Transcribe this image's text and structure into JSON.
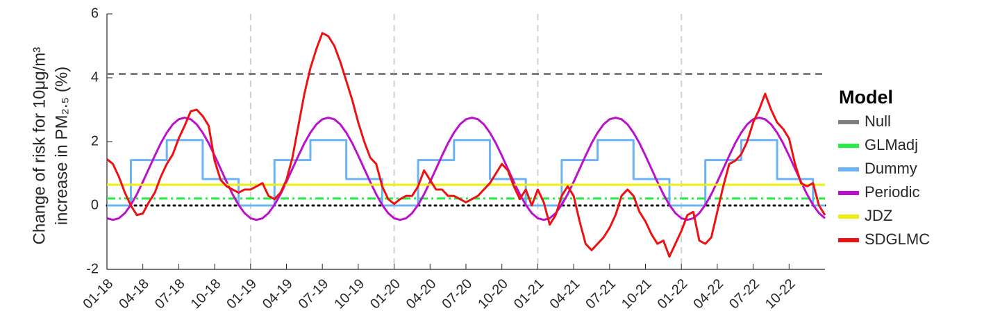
{
  "chart_data": {
    "type": "line",
    "ylabel": [
      "Change of risk for 10μg/m³",
      "increase in PM₂.₅ (%)"
    ],
    "legend_title": "Model",
    "legend": "right",
    "xlim": [
      0,
      60
    ],
    "xticks": [
      {
        "value": 0,
        "label": "01-18"
      },
      {
        "value": 3,
        "label": "04-18"
      },
      {
        "value": 6,
        "label": "07-18"
      },
      {
        "value": 9,
        "label": "10-18"
      },
      {
        "value": 12,
        "label": "01-19"
      },
      {
        "value": 15,
        "label": "04-19"
      },
      {
        "value": 18,
        "label": "07-19"
      },
      {
        "value": 21,
        "label": "10-19"
      },
      {
        "value": 24,
        "label": "01-20"
      },
      {
        "value": 27,
        "label": "04-20"
      },
      {
        "value": 30,
        "label": "07-20"
      },
      {
        "value": 33,
        "label": "10-20"
      },
      {
        "value": 36,
        "label": "01-21"
      },
      {
        "value": 39,
        "label": "04-21"
      },
      {
        "value": 42,
        "label": "07-21"
      },
      {
        "value": 45,
        "label": "10-21"
      },
      {
        "value": 48,
        "label": "01-22"
      },
      {
        "value": 51,
        "label": "04-22"
      },
      {
        "value": 54,
        "label": "07-22"
      },
      {
        "value": 57,
        "label": "10-22"
      }
    ],
    "year_lines": [
      12,
      24,
      36,
      48
    ],
    "ylim": [
      -2,
      6
    ],
    "yticks": [
      -2,
      0,
      2,
      4,
      6
    ],
    "reference_line": 0,
    "x": [
      0,
      0.5,
      1,
      1.5,
      2,
      2.5,
      3,
      3.5,
      4,
      4.5,
      5,
      5.5,
      6,
      6.5,
      7,
      7.5,
      8,
      8.5,
      9,
      9.5,
      10,
      10.5,
      11,
      11.5,
      12,
      12.5,
      13,
      13.5,
      14,
      14.5,
      15,
      15.5,
      16,
      16.5,
      17,
      17.5,
      18,
      18.5,
      19,
      19.5,
      20,
      20.5,
      21,
      21.5,
      22,
      22.5,
      23,
      23.5,
      24,
      24.5,
      25,
      25.5,
      26,
      26.5,
      27,
      27.5,
      28,
      28.5,
      29,
      29.5,
      30,
      30.5,
      31,
      31.5,
      32,
      32.5,
      33,
      33.5,
      34,
      34.5,
      35,
      35.5,
      36,
      36.5,
      37,
      37.5,
      38,
      38.5,
      39,
      39.5,
      40,
      40.5,
      41,
      41.5,
      42,
      42.5,
      43,
      43.5,
      44,
      44.5,
      45,
      45.5,
      46,
      46.5,
      47,
      47.5,
      48,
      48.5,
      49,
      49.5,
      50,
      50.5,
      51,
      51.5,
      52,
      52.5,
      53,
      53.5,
      54,
      54.5,
      55,
      55.5,
      56,
      56.5,
      57,
      57.5,
      58,
      58.5,
      59,
      59.5,
      60
    ],
    "series": [
      {
        "name": "Null",
        "color": "#808080",
        "dash": "dashed",
        "x": [
          0,
          60
        ],
        "values": [
          4.12,
          4.12
        ]
      },
      {
        "name": "GLMadj",
        "color": "#22ee44",
        "dash": "dashdot",
        "x": [
          0,
          60
        ],
        "values": [
          0.22,
          0.22
        ]
      },
      {
        "name": "Dummy",
        "color": "#6ab4f5",
        "dash": "solid",
        "x": [
          0,
          2,
          2,
          5,
          5,
          8,
          8,
          11,
          11,
          14,
          14,
          17,
          17,
          20,
          20,
          23,
          23,
          26,
          26,
          29,
          29,
          32,
          32,
          35,
          35,
          38,
          38,
          41,
          41,
          44,
          44,
          47,
          47,
          50,
          50,
          53,
          53,
          56,
          56,
          59,
          59,
          60
        ],
        "values": [
          0,
          0,
          1.42,
          1.42,
          2.05,
          2.05,
          0.83,
          0.83,
          0,
          0,
          1.42,
          1.42,
          2.05,
          2.05,
          0.83,
          0.83,
          0,
          0,
          1.42,
          1.42,
          2.05,
          2.05,
          0.83,
          0.83,
          0,
          0,
          1.42,
          1.42,
          2.05,
          2.05,
          0.83,
          0.83,
          0,
          0,
          1.42,
          1.42,
          2.05,
          2.05,
          0.83,
          0.83,
          0,
          0
        ]
      },
      {
        "name": "Periodic",
        "color": "#bb11cc",
        "dash": "solid",
        "values": [
          -0.4,
          -0.45,
          -0.4,
          -0.24,
          0.02,
          0.35,
          0.74,
          1.15,
          1.56,
          1.95,
          2.28,
          2.54,
          2.7,
          2.75,
          2.7,
          2.54,
          2.28,
          1.95,
          1.56,
          1.15,
          0.74,
          0.35,
          0.02,
          -0.24,
          -0.4,
          -0.45,
          -0.4,
          -0.24,
          0.02,
          0.35,
          0.74,
          1.15,
          1.56,
          1.95,
          2.28,
          2.54,
          2.7,
          2.75,
          2.7,
          2.54,
          2.28,
          1.95,
          1.56,
          1.15,
          0.74,
          0.35,
          0.02,
          -0.24,
          -0.4,
          -0.45,
          -0.4,
          -0.24,
          0.02,
          0.35,
          0.74,
          1.15,
          1.56,
          1.95,
          2.28,
          2.54,
          2.7,
          2.75,
          2.7,
          2.54,
          2.28,
          1.95,
          1.56,
          1.15,
          0.74,
          0.35,
          0.02,
          -0.24,
          -0.4,
          -0.45,
          -0.4,
          -0.24,
          0.02,
          0.35,
          0.74,
          1.15,
          1.56,
          1.95,
          2.28,
          2.54,
          2.7,
          2.75,
          2.7,
          2.54,
          2.28,
          1.95,
          1.56,
          1.15,
          0.74,
          0.35,
          0.02,
          -0.24,
          -0.4,
          -0.45,
          -0.4,
          -0.24,
          0.02,
          0.35,
          0.74,
          1.15,
          1.56,
          1.95,
          2.28,
          2.54,
          2.7,
          2.75,
          2.7,
          2.54,
          2.28,
          1.95,
          1.56,
          1.15,
          0.74,
          0.35,
          0.02,
          -0.24,
          -0.4
        ]
      },
      {
        "name": "JDZ",
        "color": "#eeee11",
        "dash": "solid",
        "x": [
          0,
          60
        ],
        "values": [
          0.65,
          0.65
        ]
      },
      {
        "name": "SDGLMC",
        "color": "#ee1111",
        "dash": "solid",
        "values": [
          1.45,
          1.3,
          0.9,
          0.4,
          0.0,
          -0.3,
          -0.25,
          0.1,
          0.4,
          0.9,
          1.3,
          1.6,
          2.1,
          2.5,
          2.95,
          3.0,
          2.8,
          2.5,
          1.4,
          0.8,
          0.6,
          0.5,
          0.4,
          0.5,
          0.5,
          0.6,
          0.7,
          0.3,
          0.2,
          0.4,
          0.8,
          1.5,
          2.5,
          3.5,
          4.3,
          4.9,
          5.4,
          5.3,
          5.0,
          4.5,
          3.9,
          3.3,
          2.6,
          2.0,
          1.5,
          1.3,
          0.6,
          0.2,
          0.05,
          0.2,
          0.3,
          0.3,
          0.6,
          1.1,
          0.8,
          0.5,
          0.5,
          0.3,
          0.3,
          0.2,
          0.1,
          0.2,
          0.3,
          0.5,
          0.7,
          1.0,
          1.3,
          1.1,
          0.6,
          0.2,
          0.5,
          0.0,
          0.5,
          0.1,
          -0.6,
          -0.3,
          0.3,
          0.6,
          0.3,
          -0.5,
          -1.2,
          -1.4,
          -1.2,
          -1.0,
          -0.7,
          -0.3,
          0.3,
          0.5,
          0.3,
          -0.2,
          -0.5,
          -0.9,
          -1.2,
          -1.1,
          -1.6,
          -1.2,
          -0.8,
          -0.3,
          -0.2,
          -1.1,
          -1.2,
          -1.0,
          -0.2,
          0.6,
          1.3,
          1.4,
          1.6,
          2.0,
          2.6,
          3.0,
          3.5,
          3.0,
          2.6,
          2.4,
          2.1,
          1.3,
          0.7,
          0.6,
          0.7,
          0.0,
          -0.3
        ]
      }
    ]
  }
}
